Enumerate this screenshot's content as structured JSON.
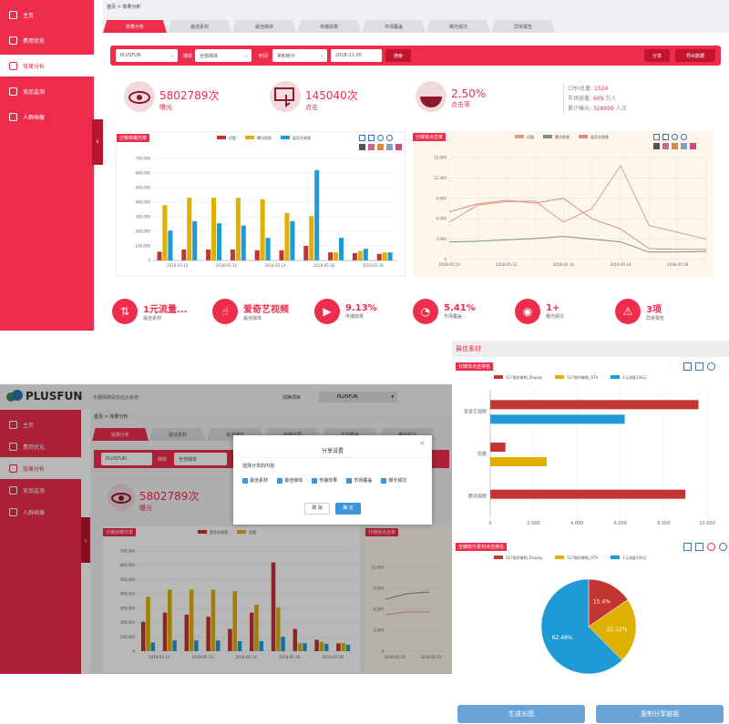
{
  "sidebar": {
    "items": [
      {
        "label": "主页"
      },
      {
        "label": "费用优化"
      },
      {
        "label": "效果分析"
      },
      {
        "label": "竞品监测"
      },
      {
        "label": "人群画像"
      }
    ],
    "collapse": "‹"
  },
  "breadcrumb": {
    "home": "首页",
    "sep": ">",
    "current": "效果分析"
  },
  "tabs": [
    "效果分析",
    "最佳素材",
    "最佳媒体",
    "传播效果",
    "市场覆盖",
    "曝光频次",
    "异常报告"
  ],
  "filter": {
    "brand": "PLUSFUN",
    "media_label": "媒体",
    "media": "全部媒体",
    "time_label": "时间",
    "range": "累积统计",
    "date": "2018-11-05",
    "search": "搜索",
    "share": "分享",
    "export": "导出数据"
  },
  "kpis": [
    {
      "value": "5802789次",
      "label": "曝光"
    },
    {
      "value": "145040次",
      "label": "点击"
    },
    {
      "value": "2.50%",
      "label": "点击率"
    }
  ],
  "stats": [
    {
      "label": "CPM总量:",
      "value": "1524",
      "unit": ""
    },
    {
      "label": "市场容量:",
      "value": "609",
      "unit": "万人"
    },
    {
      "label": "累计曝光:",
      "value": "328999",
      "unit": "人次"
    }
  ],
  "panel1": {
    "title": "分媒体曝光率"
  },
  "panel2": {
    "title": "分媒体点击率"
  },
  "series_names": [
    "优酷",
    "腾讯视频",
    "爱奇艺视频"
  ],
  "colors": {
    "red": "#c23531",
    "yellow": "#e0b000",
    "blue": "#1e9bd7",
    "accent": "#ee2d4d",
    "brown": "#d9a084",
    "gray": "#7f8f7f",
    "rose": "#d88a8a"
  },
  "chart_data": [
    {
      "type": "bar",
      "title": "分媒体曝光率",
      "categories": [
        "2018-05-10",
        "2018-05-11",
        "2018-05-12",
        "2018-05-13",
        "2018-05-14",
        "2018-05-15",
        "2018-05-16",
        "2018-05-17",
        "2018-05-18",
        "2018-05-19"
      ],
      "ylim": [
        0,
        700000
      ],
      "yticks": [
        "0",
        "100,000",
        "200,000",
        "300,000",
        "400,000",
        "500,000",
        "600,000",
        "700,000"
      ],
      "xticks": [
        "2018-05-10",
        "2018-05-12",
        "2018-05-14",
        "2018-05-16",
        "2018-05-18"
      ],
      "series": [
        {
          "name": "优酷",
          "values": [
            60000,
            75000,
            75000,
            75000,
            70000,
            70000,
            100000,
            55000,
            50000,
            45000
          ]
        },
        {
          "name": "腾讯视频",
          "values": [
            380000,
            430000,
            430000,
            430000,
            420000,
            325000,
            305000,
            55000,
            65000,
            55000
          ]
        },
        {
          "name": "爱奇艺视频",
          "values": [
            205000,
            270000,
            255000,
            240000,
            155000,
            270000,
            620000,
            155000,
            80000,
            55000
          ]
        }
      ]
    },
    {
      "type": "line",
      "title": "分媒体点击率",
      "categories": [
        "2018-05-10",
        "2018-05-11",
        "2018-05-12",
        "2018-05-13",
        "2018-05-14",
        "2018-05-15",
        "2018-05-16",
        "2018-05-17",
        "2018-05-18",
        "2018-05-19"
      ],
      "ylim": [
        0,
        15000
      ],
      "yticks": [
        "0",
        "3,000",
        "6,000",
        "9,000",
        "12,000",
        "15,000"
      ],
      "xticks": [
        "2018-05-10",
        "2018-05-12",
        "2018-05-14",
        "2018-05-16",
        "2018-05-18"
      ],
      "series": [
        {
          "name": "优酷",
          "values": [
            5500,
            8000,
            8500,
            8600,
            5500,
            7500,
            13800,
            5000,
            4000,
            3000
          ]
        },
        {
          "name": "腾讯视频",
          "values": [
            2600,
            2700,
            2900,
            3100,
            3400,
            3000,
            2600,
            1100,
            1100,
            1200
          ]
        },
        {
          "name": "爱奇艺视频",
          "values": [
            7000,
            8200,
            8700,
            8300,
            9000,
            6000,
            4500,
            1600,
            1500,
            1500
          ]
        }
      ]
    },
    {
      "type": "bar",
      "orientation": "horizontal",
      "title": "分媒体点击排名",
      "categories": [
        "爱奇艺视频",
        "优酷",
        "腾讯视频"
      ],
      "xlim": [
        0,
        10000
      ],
      "xticks": [
        "0",
        "2,000",
        "4,000",
        "6,000",
        "8,000",
        "10,000"
      ],
      "series": [
        {
          "name": "517限时掌狗_Display",
          "values": [
            9600,
            700,
            9000
          ]
        },
        {
          "name": "517限时掌狗_OTV",
          "values": [
            null,
            2600,
            null
          ]
        },
        {
          "name": "1元流量100元",
          "values": [
            6200,
            null,
            null
          ]
        }
      ]
    },
    {
      "type": "pie",
      "title": "全媒体分素材点击排名",
      "series": [
        {
          "name": "517限时掌狗_Display",
          "value": 15.4
        },
        {
          "name": "517限时掌狗_OTV",
          "value": 22.12
        },
        {
          "name": "1元流量100元",
          "value": 62.48
        }
      ],
      "labels": [
        "15.4%",
        "22.12%",
        "62.48%"
      ]
    }
  ],
  "bottom_stats": [
    {
      "value": "1元流量...",
      "label": "最佳素材"
    },
    {
      "value": "爱奇艺视频",
      "label": "最佳媒体"
    },
    {
      "value": "9.13%",
      "label": "传播效果"
    },
    {
      "value": "5.41%",
      "label": "市场覆盖"
    },
    {
      "value": "1+",
      "label": "曝光频次"
    },
    {
      "value": "3项",
      "label": "异常报告"
    }
  ],
  "screenshot2": {
    "logo": "PLUSFUN",
    "subtitle": "乐趣网络投放后台系统",
    "switch_label": "切换项目",
    "project": "PLUSFUN",
    "nav": [
      "主页",
      "费用优化",
      "效果分析",
      "竞品监测",
      "人群画像"
    ],
    "modal": {
      "title": "分享设置",
      "prompt": "选择分享的内容:",
      "options": [
        "最佳素材",
        "最佳媒体",
        "传播效果",
        "市场覆盖",
        "曝光频次"
      ],
      "cancel": "取 消",
      "ok": "确 定",
      "close": "×"
    },
    "kpi_value": "5802789次",
    "kpi_label": "曝光",
    "panel1": "分媒体曝光率",
    "panel2": "分媒体点击率",
    "legend": [
      "爱奇艺视频",
      "优酷"
    ],
    "yticks": [
      "0",
      "100,000",
      "200,000",
      "300,000",
      "400,000",
      "500,000",
      "600,000",
      "700,000"
    ],
    "xticks": [
      "2018-05-10",
      "2018-05-12",
      "2018-05-14",
      "2018-05-16",
      "2018-05-18"
    ],
    "rticks": [
      "12,000",
      "9,000",
      "6,000",
      "3,000",
      "0"
    ],
    "rxticks": [
      "2018-05-10",
      "2018-05-12"
    ]
  },
  "right": {
    "title": "最佳素材",
    "panel1": "分媒体点击排名",
    "panel2": "全媒体分素材点击排名",
    "legend": [
      "517限时掌狗_Display",
      "517限时掌狗_OTV",
      "1元流量100元"
    ],
    "gen_button": "生成长图",
    "copy_button": "复制分享链接"
  }
}
